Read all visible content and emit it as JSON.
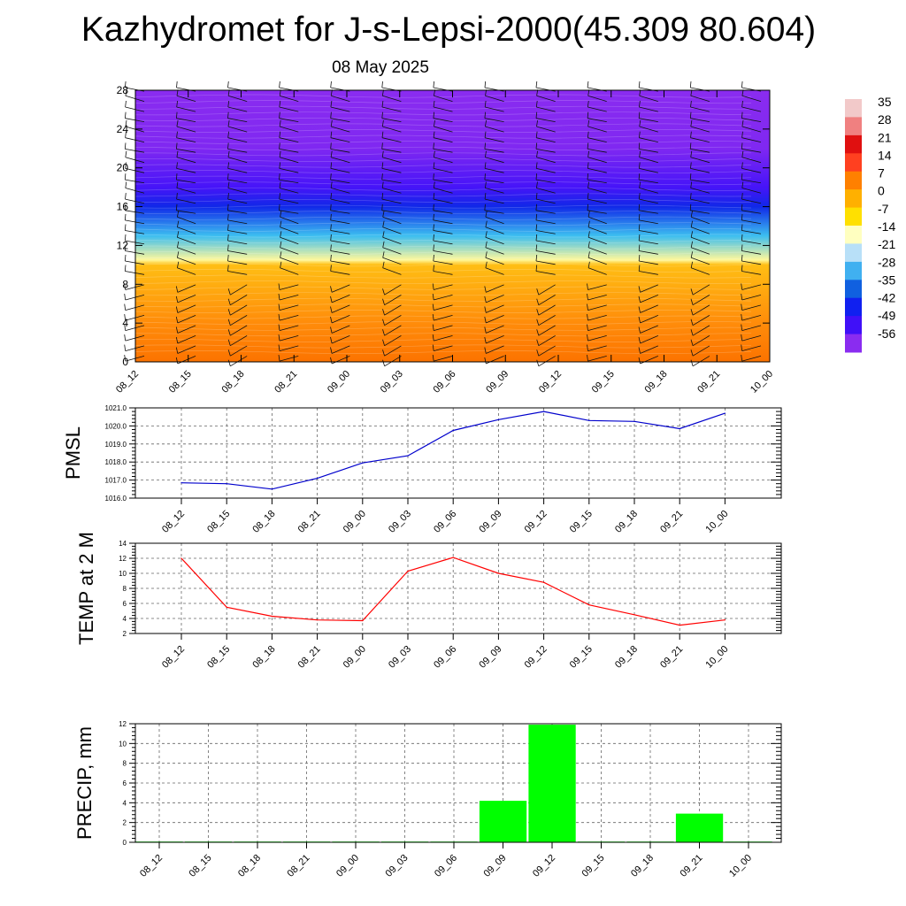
{
  "header": {
    "title": "Kazhydromet for J-s-Lepsi-2000(45.309 80.604)",
    "subtitle": "08 May 2025"
  },
  "chart_data": [
    {
      "type": "heatmap",
      "description_free": true,
      "x_tick_labels": [
        "08_12",
        "08_15",
        "08_18",
        "08_21",
        "09_00",
        "09_03",
        "09_06",
        "09_09",
        "09_12",
        "09_15",
        "09_18",
        "09_21",
        "10_00"
      ],
      "y_ticks": [
        0,
        4,
        8,
        12,
        16,
        20,
        24,
        28
      ],
      "ylim": [
        0,
        28
      ],
      "colorbar_labels": [
        "35",
        "28",
        "21",
        "14",
        "7",
        "0",
        "-7",
        "-14",
        "-21",
        "-28",
        "-35",
        "-42",
        "-49",
        "-56"
      ],
      "colorbar_colors": [
        "#f2c9c9",
        "#f08080",
        "#e01010",
        "#ff4020",
        "#ff8000",
        "#ffb000",
        "#ffe000",
        "#ffffc0",
        "#b8e0f8",
        "#40b0f0",
        "#1060e0",
        "#1020f0",
        "#4010f8",
        "#8a2cf0"
      ],
      "temperature_profile_c": [
        {
          "height": 0,
          "value": 14
        },
        {
          "height": 4,
          "value": 8
        },
        {
          "height": 10,
          "value": 0
        },
        {
          "height": 10.5,
          "value": -10
        },
        {
          "height": 13,
          "value": -25
        },
        {
          "height": 16,
          "value": -45
        },
        {
          "height": 18,
          "value": -52
        },
        {
          "height": 22,
          "value": -57
        },
        {
          "height": 28,
          "value": -58
        }
      ],
      "wind_barbs": true
    },
    {
      "type": "line",
      "ylabel": "PMSL",
      "x": [
        "08_12",
        "08_15",
        "08_18",
        "08_21",
        "09_00",
        "09_03",
        "09_06",
        "09_09",
        "09_12",
        "09_15",
        "09_18",
        "09_21",
        "10_00"
      ],
      "values": [
        1016.85,
        1016.8,
        1016.5,
        1017.1,
        1017.95,
        1018.35,
        1019.75,
        1020.35,
        1020.8,
        1020.3,
        1020.25,
        1019.85,
        1020.7
      ],
      "ylim": [
        1016.0,
        1021.0
      ],
      "y_ticks": [
        1016.0,
        1017.0,
        1018.0,
        1019.0,
        1020.0,
        1021.0
      ],
      "y_tick_labels": [
        "1016.0",
        "1017.0",
        "1018.0",
        "1019.0",
        "1020.0",
        "1021.0"
      ],
      "color": "#0000cc",
      "grid": true
    },
    {
      "type": "line",
      "ylabel": "TEMP at 2 M",
      "x": [
        "08_12",
        "08_15",
        "08_18",
        "08_21",
        "09_00",
        "09_03",
        "09_06",
        "09_09",
        "09_12",
        "09_15",
        "09_18",
        "09_21",
        "10_00"
      ],
      "values": [
        12.0,
        5.5,
        4.3,
        3.8,
        3.7,
        10.3,
        12.1,
        10.0,
        8.8,
        5.8,
        4.5,
        3.1,
        3.8
      ],
      "ylim": [
        2,
        14
      ],
      "y_ticks": [
        2,
        4,
        6,
        8,
        10,
        12,
        14
      ],
      "y_tick_labels": [
        "2",
        "4",
        "6",
        "8",
        "10",
        "12",
        "14"
      ],
      "color": "#ff0000",
      "grid": true
    },
    {
      "type": "bar",
      "ylabel": "PRECIP, mm",
      "categories": [
        "08_12",
        "08_15",
        "08_18",
        "08_21",
        "09_00",
        "09_03",
        "09_06",
        "09_09",
        "09_12",
        "09_15",
        "09_18",
        "09_21",
        "10_00"
      ],
      "values": [
        0,
        0,
        0,
        0,
        0,
        0,
        0.05,
        4.2,
        11.9,
        0.05,
        0,
        2.9,
        0.05
      ],
      "ylim": [
        0,
        12
      ],
      "y_ticks": [
        0,
        2,
        4,
        6,
        8,
        10,
        12
      ],
      "y_tick_labels": [
        "0",
        "2",
        "4",
        "6",
        "8",
        "10",
        "12"
      ],
      "color": "#00ff00",
      "grid": true
    }
  ]
}
